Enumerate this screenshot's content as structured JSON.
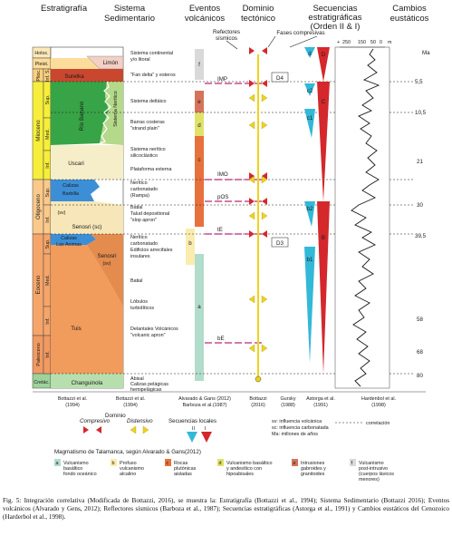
{
  "headers": {
    "estratigrafia": "Estratigrafía",
    "sistema": [
      "Sistema",
      "Sedimentario"
    ],
    "eventos": [
      "Eventos",
      "volcánicos"
    ],
    "dominio": [
      "Dominio",
      "tectónico"
    ],
    "secuencias": [
      "Secuencias",
      "estratigráficas",
      "(Orden II & I)"
    ],
    "cambios": [
      "Cambios",
      "eustáticos"
    ],
    "refectores": [
      "Refectores",
      "sísmicos"
    ],
    "fases": "Fases compresivas",
    "eust_ticks": [
      "+",
      "250",
      "150",
      "50",
      "0",
      "m"
    ],
    "ma_unit": "Ma"
  },
  "epochs": [
    {
      "label": "Holoc."
    },
    {
      "label": "Pleist."
    },
    {
      "label": "Plioc."
    },
    {
      "label": "Mioceno"
    },
    {
      "label": "Oligoceno"
    },
    {
      "label": "Eoceno"
    },
    {
      "label": "Paleoceno"
    },
    {
      "label": "Cretác."
    }
  ],
  "subepochs": [
    {
      "label": "Inf. S."
    },
    {
      "label": "Sup."
    },
    {
      "label": "Med."
    },
    {
      "label": "Inf."
    },
    {
      "label": "Sup."
    },
    {
      "label": "Inf."
    },
    {
      "label": "Sup."
    },
    {
      "label": "Med."
    },
    {
      "label": "Inf."
    },
    {
      "label": "Inf."
    }
  ],
  "formations": [
    {
      "name": "Limón"
    },
    {
      "name": "Suretka"
    },
    {
      "name": "Río Banano"
    },
    {
      "name": "Sistema Nerítico"
    },
    {
      "name": "Uscari"
    },
    {
      "name": "Calizas"
    },
    {
      "name": "Barbilla"
    },
    {
      "name": "(sv)"
    },
    {
      "name": "Senosri (sc)"
    },
    {
      "name": "Calizas"
    },
    {
      "name": "Las Animas"
    },
    {
      "name": "Senosri"
    },
    {
      "name": "(sv)"
    },
    {
      "name": "Tuis"
    },
    {
      "name": "Changuinola"
    }
  ],
  "systems": [
    {
      "lines": [
        "Sistema continental",
        "y/o litoral"
      ]
    },
    {
      "lines": [
        "\"Fan delta\" y esteros"
      ]
    },
    {
      "lines": [
        "Sistema deltáico"
      ]
    },
    {
      "lines": [
        "Barras costeras",
        "\"strand plain\""
      ]
    },
    {
      "lines": [
        "Sistema nerítico",
        "silicoclástico"
      ]
    },
    {
      "lines": [
        "Plataforma externa"
      ]
    },
    {
      "lines": [
        "Nerítico",
        "carbonatado",
        "(Rampa)"
      ]
    },
    {
      "lines": [
        "Batial",
        "Talud depositional",
        "\"slop apron\""
      ]
    },
    {
      "lines": [
        "Nerítico",
        "carbonatado"
      ]
    },
    {
      "lines": [
        "Edificios arrecifales",
        "insulares"
      ]
    },
    {
      "lines": [
        "Batial"
      ]
    },
    {
      "lines": [
        "Lóbulos",
        "turbidíticos"
      ]
    },
    {
      "lines": [
        "Delantales Volcánicos",
        "\"volcanic apron\""
      ]
    },
    {
      "lines": [
        "Abisal",
        "Calizas pelágicas",
        "hemipelágicas"
      ]
    }
  ],
  "volcanic_letters": [
    "f",
    "e",
    "d",
    "c",
    "b",
    "a"
  ],
  "reflectors": [
    "IMP",
    "IMO",
    "pOS",
    "tE",
    "bE"
  ],
  "phases": [
    "D4",
    "D3"
  ],
  "sequences": {
    "local": [
      "d",
      "c2",
      "c1",
      "b2",
      "b1"
    ],
    "regional": [
      "D",
      "C",
      "B"
    ]
  },
  "ages": [
    "5,5",
    "10,5",
    "21",
    "30",
    "39,5",
    "58",
    "68",
    "80"
  ],
  "sources": [
    [
      "Bottazzi et al.",
      "(1994)"
    ],
    [
      "Bottazzi et al.",
      "(1994)"
    ],
    [
      "Alvarado & Gans (2012)",
      "Barboza et al.(1987)"
    ],
    [
      "Bottazzi",
      "(2016)"
    ],
    [
      "Gursky",
      "(1988)"
    ],
    [
      "Astorga et al.",
      "(1991)"
    ],
    [
      "Hardenbol et al.",
      "(1998)"
    ]
  ],
  "legend": {
    "dominio": "Dominio",
    "compresivo": "Compresivo",
    "distensivo": "Distensivo",
    "secuencias_locales": "Secuencias locales",
    "seq_II": "II",
    "seq_I": "I",
    "sv": "sv: influencia volcánica",
    "sc": "sc: influencia carbonatada",
    "ma": "Ma: millones de años",
    "correlacion": "correlación",
    "magmatismo": "Magmatismo de Talamanca, según Alvarado & Gans(2012)",
    "items": [
      {
        "letter": "a",
        "lines": [
          "Vulcanismo",
          "basáltico",
          "fondo oceánico"
        ]
      },
      {
        "letter": "b",
        "lines": [
          "Profuso",
          "vulcanismo",
          "alcalino"
        ]
      },
      {
        "letter": "c",
        "lines": [
          "Rocas",
          "plutónicas",
          "aisladas"
        ]
      },
      {
        "letter": "d",
        "lines": [
          "Vulcanismo basáltico",
          "y andesítico con",
          "hipoabisales"
        ]
      },
      {
        "letter": "e",
        "lines": [
          "Intrusiones",
          "gabroides y",
          "granitoides"
        ]
      },
      {
        "letter": "f",
        "lines": [
          "Vulcanismo",
          "post-intrusivo",
          "(cuerpos lávicos",
          "menores)"
        ]
      }
    ]
  },
  "caption": "Fig. 5: Integración correlativa (Modificada de Bottazzi, 2016), se muestra la: Estratigrafía (Bottazzi et al., 1994); Sistema Sedimentario (Bottazzi 2016); Eventos volcánicos (Alvarado y Gens, 2012); Reflectores sísmicos (Barboza et al., 1987); Secuencias estratigráficas (Astorga et al., 1991) y Cambios eustáticos del Cenozoico (Harderbol et al., 1998).",
  "colors": {
    "holoc": "#fde9b8",
    "pleist": "#fbdc9a",
    "plioc": "#fbd07e",
    "mioceno": "#f6ee3a",
    "oligoceno": "#fbc98a",
    "eoceno": "#f6a56a",
    "paleoceno": "#f19a62",
    "cretac": "#9ed29a",
    "suretka": "#c9472e",
    "limon": "#f2d0c6",
    "rio_banano": "#37a447",
    "uscari": "#f6eec8",
    "calizas": "#3c8fd6",
    "senosri_sc": "#f7e7b8",
    "senosri": "#e48b4e",
    "tuis": "#f19b5c",
    "changuinola": "#b7dfae",
    "compresivo": "#d4282c",
    "distensivo": "#f0d21c",
    "seq_local": "#33b8d8",
    "seq_regional": "#d4282c",
    "magenta": "#c0267e",
    "volc_a": "#b2dccb",
    "volc_b": "#faecae",
    "volc_c": "#e7713c",
    "volc_d": "#e0e26a",
    "volc_e": "#d5745a",
    "volc_f": "#d9d9d9"
  }
}
